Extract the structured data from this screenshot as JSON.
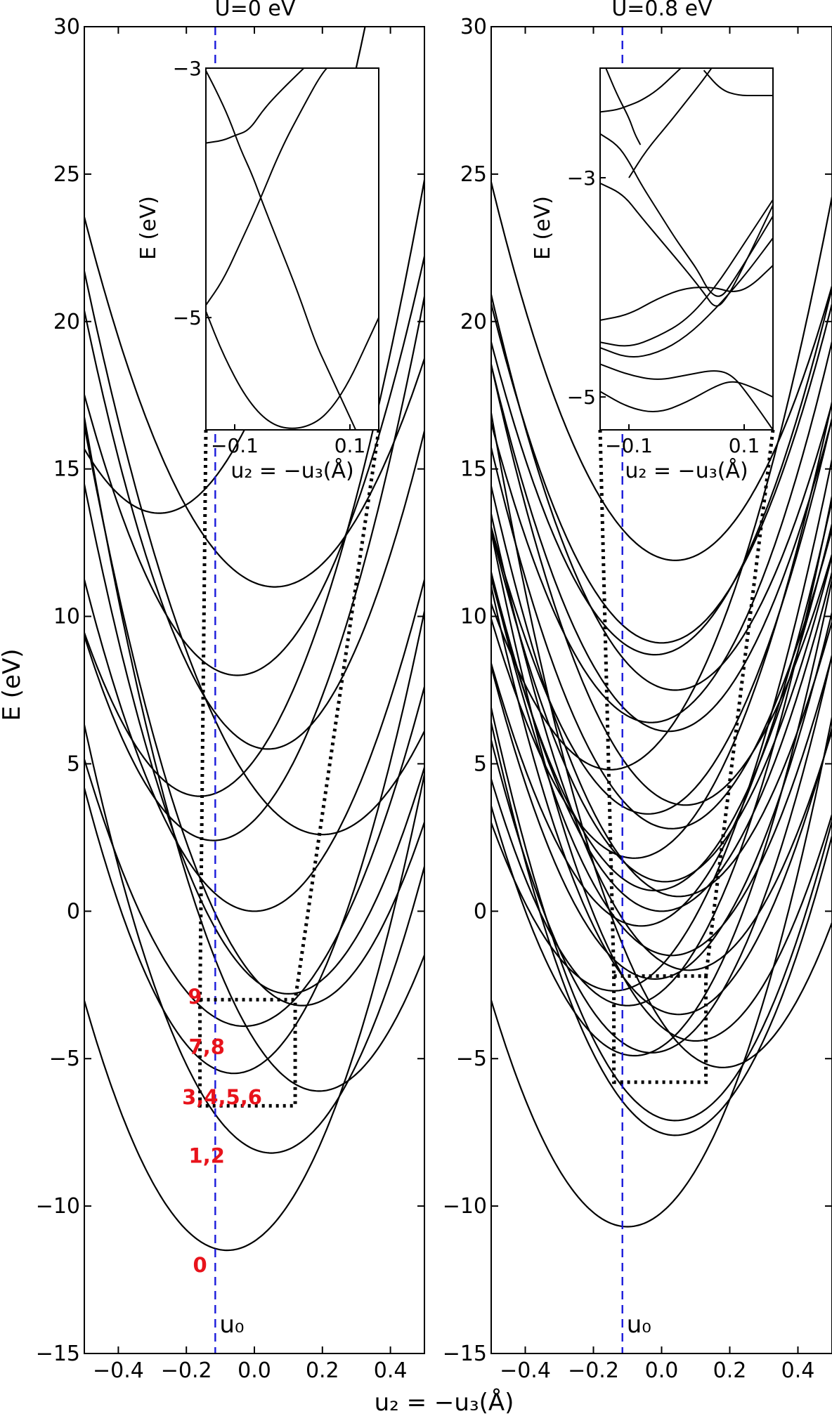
{
  "figure": {
    "ylabel": "E (eV)",
    "xlabel": "u₂ = −u₃(Å)",
    "u0_label": "u₀"
  },
  "colors": {
    "curves": "#000000",
    "u0_line": "#1a1adb",
    "state_labels": "#e8131b"
  },
  "chart_data": [
    {
      "type": "line",
      "panel": "left",
      "title": "U=0 eV",
      "xlabel": "u₂ = −u₃(Å)",
      "ylabel": "E (eV)",
      "xlim": [
        -0.5,
        0.5
      ],
      "ylim": [
        -15,
        30
      ],
      "xticks": [
        -0.4,
        -0.2,
        0.0,
        0.2,
        0.4
      ],
      "xtick_labels": [
        "−0.4",
        "−0.2",
        "0.0",
        "0.2",
        "0.4"
      ],
      "yticks": [
        -15,
        -10,
        -5,
        0,
        5,
        10,
        15,
        20,
        25,
        30
      ],
      "ytick_labels": [
        "−15",
        "−10",
        "−5",
        "0",
        "5",
        "10",
        "15",
        "20",
        "25",
        "30"
      ],
      "u0": -0.115,
      "series_model": "E(x) = E_min + k * (x - x_min)^2",
      "series": [
        {
          "x_min": -0.08,
          "E_min": -11.5,
          "k": 48
        },
        {
          "x_min": 0.05,
          "E_min": -8.2,
          "k": 48
        },
        {
          "x_min": 0.19,
          "E_min": -6.1,
          "k": 48
        },
        {
          "x_min": -0.06,
          "E_min": -5.5,
          "k": 50
        },
        {
          "x_min": 0.14,
          "E_min": -3.2,
          "k": 48
        },
        {
          "x_min": -0.03,
          "E_min": -3.9,
          "k": 41
        },
        {
          "x_min": 0.1,
          "E_min": -2.8,
          "k": 48
        },
        {
          "x_min": 0.0,
          "E_min": 0.0,
          "k": 45
        },
        {
          "x_min": -0.12,
          "E_min": 2.4,
          "k": 48
        },
        {
          "x_min": 0.2,
          "E_min": 2.6,
          "k": 39
        },
        {
          "x_min": -0.16,
          "E_min": 3.9,
          "k": 48
        },
        {
          "x_min": 0.04,
          "E_min": 5.5,
          "k": 51
        },
        {
          "x_min": -0.05,
          "E_min": 8.0,
          "k": 47
        },
        {
          "x_min": 0.06,
          "E_min": 11.0,
          "k": 40
        },
        {
          "x_min": -0.28,
          "E_min": 13.5,
          "k": 45
        }
      ],
      "state_labels": [
        {
          "text": "0",
          "x": -0.16,
          "y": -12.0
        },
        {
          "text": "1,2",
          "x": -0.14,
          "y": -8.3
        },
        {
          "text": "3,4,5,6",
          "x": -0.095,
          "y": -6.3
        },
        {
          "text": "7,8",
          "x": -0.14,
          "y": -4.6
        },
        {
          "text": "9",
          "x": -0.175,
          "y": -2.9
        }
      ],
      "zoom_box": {
        "x": [
          -0.16,
          0.12
        ],
        "y": [
          -6.6,
          -3.0
        ]
      },
      "inset": {
        "ylabel": "E (eV)",
        "xlabel": "u₂ = −u₃(Å)",
        "xlim": [
          -0.15,
          0.15
        ],
        "ylim": [
          -5.9,
          -3.0
        ],
        "xticks": [
          -0.1,
          0.1
        ],
        "xtick_labels": [
          "−0.1",
          "0.1"
        ],
        "yticks": [
          -3,
          -5
        ],
        "ytick_labels": [
          "−3",
          "−5"
        ],
        "series": [
          {
            "points": [
              [
                -0.15,
                -4.95
              ],
              [
                -0.12,
                -5.3
              ],
              [
                -0.08,
                -5.65
              ],
              [
                -0.04,
                -5.85
              ],
              [
                0.0,
                -5.9
              ],
              [
                0.04,
                -5.85
              ],
              [
                0.07,
                -5.72
              ],
              [
                0.1,
                -5.5
              ],
              [
                0.13,
                -5.2
              ],
              [
                0.15,
                -5.0
              ]
            ]
          },
          {
            "points": [
              [
                -0.15,
                -3.02
              ],
              [
                -0.13,
                -3.2
              ],
              [
                -0.11,
                -3.4
              ],
              [
                -0.09,
                -3.65
              ],
              [
                -0.07,
                -3.85
              ],
              [
                -0.05,
                -4.1
              ],
              [
                -0.02,
                -4.45
              ],
              [
                0.01,
                -4.8
              ],
              [
                0.04,
                -5.2
              ],
              [
                0.06,
                -5.4
              ],
              [
                0.09,
                -5.7
              ],
              [
                0.11,
                -5.9
              ]
            ]
          },
          {
            "points": [
              [
                -0.15,
                -3.6
              ],
              [
                -0.12,
                -3.58
              ],
              [
                -0.1,
                -3.54
              ],
              [
                -0.075,
                -3.5
              ],
              [
                -0.05,
                -3.33
              ],
              [
                -0.02,
                -3.18
              ],
              [
                0.02,
                -3.0
              ]
            ]
          },
          {
            "points": [
              [
                -0.15,
                -4.9
              ],
              [
                -0.12,
                -4.7
              ],
              [
                -0.09,
                -4.4
              ],
              [
                -0.06,
                -4.1
              ],
              [
                -0.02,
                -3.65
              ],
              [
                0.02,
                -3.3
              ],
              [
                0.05,
                -3.05
              ],
              [
                0.07,
                -2.95
              ]
            ]
          }
        ]
      }
    },
    {
      "type": "line",
      "panel": "right",
      "title": "U=0.8 eV",
      "xlabel": "u₂ = −u₃(Å)",
      "ylabel": "",
      "xlim": [
        -0.5,
        0.5
      ],
      "ylim": [
        -15,
        30
      ],
      "xticks": [
        -0.4,
        -0.2,
        0.0,
        0.2,
        0.4
      ],
      "xtick_labels": [
        "−0.4",
        "−0.2",
        "0.0",
        "0.2",
        "0.4"
      ],
      "yticks": [
        -15,
        -10,
        -5,
        0,
        5,
        10,
        15,
        20,
        25,
        30
      ],
      "ytick_labels": [
        "−15",
        "−10",
        "−5",
        "0",
        "5",
        "10",
        "15",
        "20",
        "25",
        "30"
      ],
      "u0": -0.115,
      "series_model": "E(x) = E_min + k * (x - x_min)^2",
      "series": [
        {
          "x_min": -0.1,
          "E_min": -10.7,
          "k": 48
        },
        {
          "x_min": 0.04,
          "E_min": -7.6,
          "k": 48
        },
        {
          "x_min": 0.04,
          "E_min": -7.1,
          "k": 48
        },
        {
          "x_min": 0.18,
          "E_min": -5.3,
          "k": 48
        },
        {
          "x_min": -0.08,
          "E_min": -4.9,
          "k": 48
        },
        {
          "x_min": -0.03,
          "E_min": -4.8,
          "k": 48
        },
        {
          "x_min": 0.1,
          "E_min": -4.4,
          "k": 48
        },
        {
          "x_min": 0.05,
          "E_min": -3.5,
          "k": 48
        },
        {
          "x_min": -0.1,
          "E_min": -3.2,
          "k": 48
        },
        {
          "x_min": -0.14,
          "E_min": -2.7,
          "k": 44
        },
        {
          "x_min": -0.02,
          "E_min": -2.3,
          "k": 46
        },
        {
          "x_min": 0.08,
          "E_min": -2.0,
          "k": 46
        },
        {
          "x_min": 0.03,
          "E_min": -1.5,
          "k": 46
        },
        {
          "x_min": -0.06,
          "E_min": -0.5,
          "k": 46
        },
        {
          "x_min": 0.0,
          "E_min": 0.0,
          "k": 46
        },
        {
          "x_min": 0.05,
          "E_min": 0.5,
          "k": 46
        },
        {
          "x_min": -0.02,
          "E_min": 0.7,
          "k": 46
        },
        {
          "x_min": 0.01,
          "E_min": 1.0,
          "k": 46
        },
        {
          "x_min": -0.08,
          "E_min": 1.8,
          "k": 46
        },
        {
          "x_min": 0.03,
          "E_min": 2.8,
          "k": 46
        },
        {
          "x_min": -0.04,
          "E_min": 3.3,
          "k": 46
        },
        {
          "x_min": 0.07,
          "E_min": 3.6,
          "k": 46
        },
        {
          "x_min": -0.15,
          "E_min": 4.8,
          "k": 46
        },
        {
          "x_min": 0.02,
          "E_min": 6.1,
          "k": 46
        },
        {
          "x_min": -0.03,
          "E_min": 6.4,
          "k": 46
        },
        {
          "x_min": 0.04,
          "E_min": 7.5,
          "k": 46
        },
        {
          "x_min": -0.02,
          "E_min": 8.7,
          "k": 46
        },
        {
          "x_min": 0.0,
          "E_min": 9.1,
          "k": 46
        },
        {
          "x_min": 0.04,
          "E_min": 11.9,
          "k": 44
        }
      ],
      "zoom_box": {
        "x": [
          -0.14,
          0.13
        ],
        "y": [
          -5.8,
          -2.2
        ]
      },
      "inset": {
        "ylabel": "E (eV)",
        "xlabel": "u₂ = −u₃(Å)",
        "xlim": [
          -0.15,
          0.15
        ],
        "ylim": [
          -5.3,
          -2.0
        ],
        "xticks": [
          -0.1,
          0.1
        ],
        "xtick_labels": [
          "−0.1",
          "0.1"
        ],
        "yticks": [
          -3,
          -5
        ],
        "ytick_labels": [
          "−3",
          "−5"
        ],
        "series": [
          {
            "points": [
              [
                -0.15,
                -4.95
              ],
              [
                -0.1,
                -5.1
              ],
              [
                -0.05,
                -5.15
              ],
              [
                0.0,
                -5.05
              ],
              [
                0.05,
                -4.9
              ],
              [
                0.08,
                -4.85
              ],
              [
                0.11,
                -4.9
              ],
              [
                0.15,
                -5.0
              ]
            ]
          },
          {
            "points": [
              [
                -0.15,
                -4.7
              ],
              [
                -0.1,
                -4.8
              ],
              [
                -0.05,
                -4.85
              ],
              [
                0.0,
                -4.8
              ],
              [
                0.05,
                -4.75
              ],
              [
                0.08,
                -4.8
              ],
              [
                0.11,
                -5.0
              ],
              [
                0.15,
                -5.3
              ]
            ]
          },
          {
            "points": [
              [
                -0.15,
                -4.55
              ],
              [
                -0.1,
                -4.65
              ],
              [
                -0.05,
                -4.6
              ],
              [
                0.0,
                -4.45
              ],
              [
                0.05,
                -4.2
              ],
              [
                0.1,
                -3.9
              ],
              [
                0.15,
                -3.55
              ]
            ]
          },
          {
            "points": [
              [
                -0.15,
                -4.5
              ],
              [
                -0.1,
                -4.55
              ],
              [
                -0.05,
                -4.45
              ],
              [
                0.0,
                -4.3
              ],
              [
                0.05,
                -4.0
              ],
              [
                0.1,
                -3.6
              ],
              [
                0.15,
                -3.2
              ]
            ]
          },
          {
            "points": [
              [
                -0.15,
                -4.3
              ],
              [
                -0.1,
                -4.25
              ],
              [
                -0.05,
                -4.1
              ],
              [
                0.0,
                -4.0
              ],
              [
                0.05,
                -4.0
              ],
              [
                0.08,
                -4.05
              ],
              [
                0.11,
                -4.0
              ],
              [
                0.15,
                -3.8
              ]
            ]
          },
          {
            "points": [
              [
                -0.15,
                -3.05
              ],
              [
                -0.11,
                -3.15
              ],
              [
                -0.08,
                -3.35
              ],
              [
                -0.04,
                -3.6
              ],
              [
                0.0,
                -3.85
              ],
              [
                0.03,
                -4.05
              ],
              [
                0.05,
                -4.2
              ],
              [
                0.07,
                -4.1
              ],
              [
                0.1,
                -3.8
              ],
              [
                0.15,
                -3.25
              ]
            ]
          },
          {
            "points": [
              [
                -0.15,
                -2.6
              ],
              [
                -0.12,
                -2.7
              ],
              [
                -0.1,
                -2.85
              ],
              [
                -0.08,
                -3.05
              ],
              [
                -0.05,
                -3.3
              ],
              [
                -0.02,
                -3.55
              ],
              [
                0.0,
                -3.7
              ],
              [
                0.02,
                -3.85
              ],
              [
                0.04,
                -4.05
              ],
              [
                0.06,
                -4.1
              ],
              [
                0.08,
                -3.95
              ],
              [
                0.11,
                -3.7
              ],
              [
                0.15,
                -3.35
              ]
            ]
          },
          {
            "points": [
              [
                -0.15,
                -2.4
              ],
              [
                -0.12,
                -2.38
              ],
              [
                -0.1,
                -2.34
              ],
              [
                -0.08,
                -2.3
              ],
              [
                -0.05,
                -2.2
              ],
              [
                -0.02,
                -2.05
              ],
              [
                0.0,
                -1.95
              ]
            ]
          },
          {
            "points": [
              [
                -0.14,
                -2.0
              ],
              [
                -0.12,
                -2.25
              ],
              [
                -0.1,
                -2.45
              ],
              [
                -0.09,
                -2.6
              ],
              [
                -0.08,
                -2.7
              ]
            ]
          },
          {
            "points": [
              [
                -0.1,
                -3.0
              ],
              [
                -0.07,
                -2.75
              ],
              [
                -0.03,
                -2.5
              ],
              [
                0.0,
                -2.3
              ],
              [
                0.03,
                -2.1
              ],
              [
                0.05,
                -1.95
              ]
            ]
          },
          {
            "points": [
              [
                0.03,
                -2.02
              ],
              [
                0.06,
                -2.2
              ],
              [
                0.09,
                -2.25
              ],
              [
                0.12,
                -2.25
              ],
              [
                0.15,
                -2.25
              ]
            ]
          }
        ]
      }
    }
  ]
}
